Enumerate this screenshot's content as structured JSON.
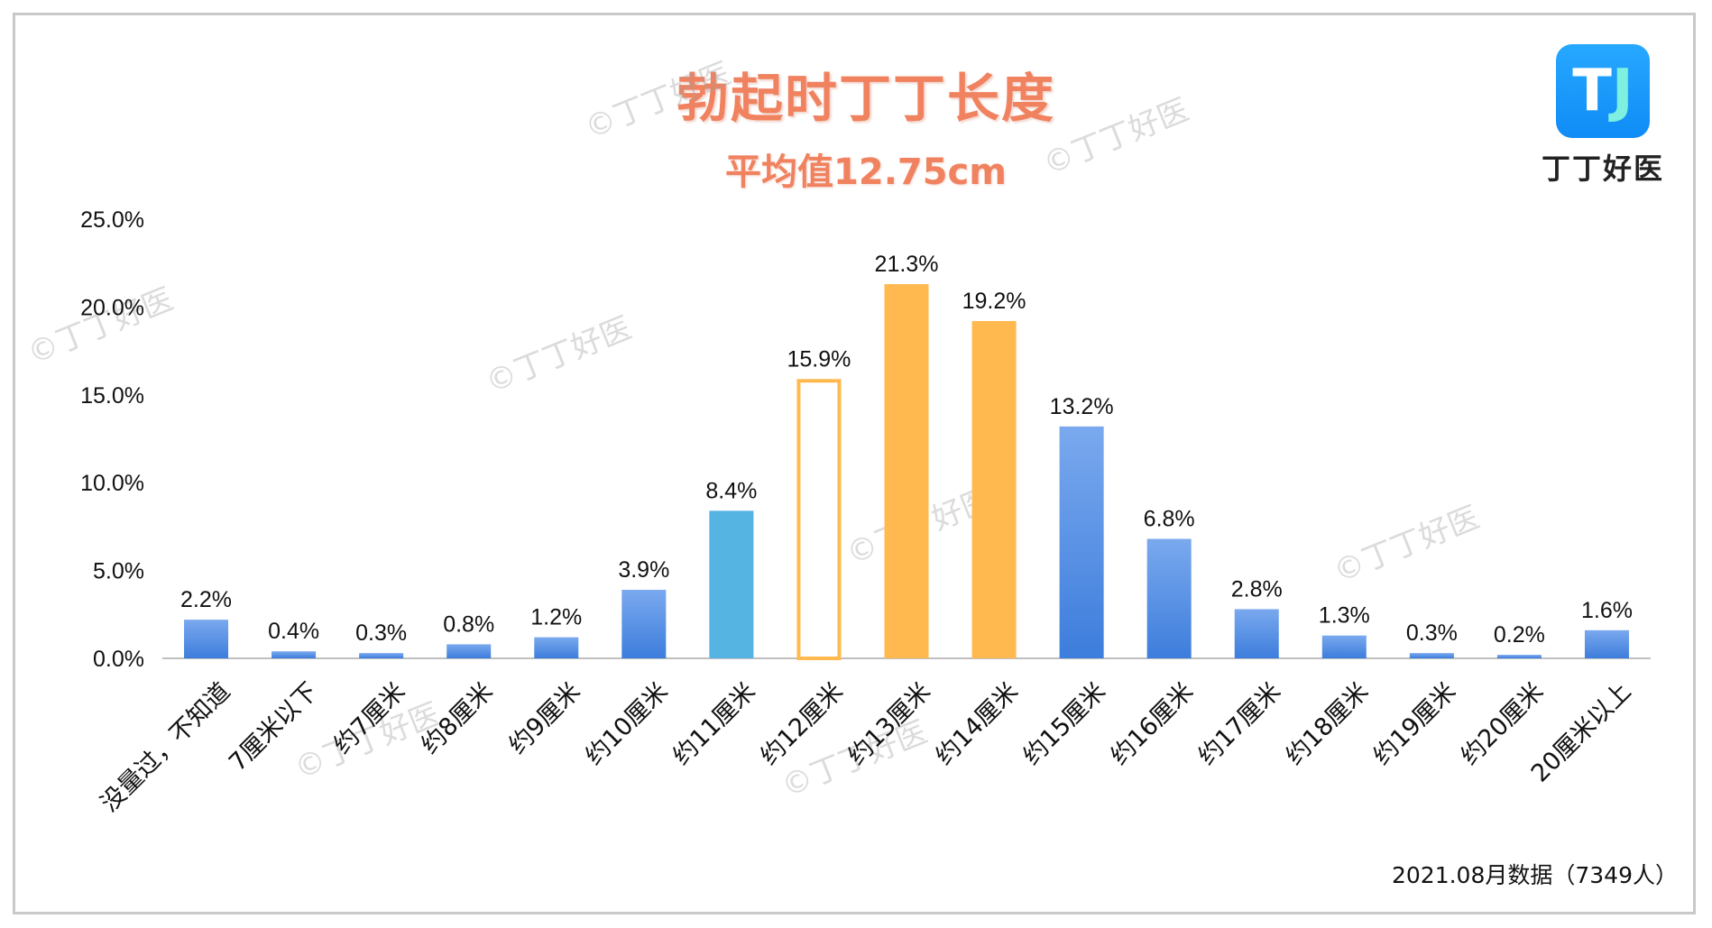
{
  "title": "勃起时丁丁长度",
  "subtitle": "平均值12.75cm",
  "logo": {
    "glyph_main": "T",
    "glyph_accent": "J",
    "text": "丁丁好医"
  },
  "watermark_text": "©丁丁好医",
  "footnote": "2021.08月数据（7349人）",
  "colors": {
    "title": "#f0825f",
    "blue": "#4f8fe6",
    "light_blue": "#56b4e3",
    "orange": "#ffb94f",
    "axis": "#bfbfbf"
  },
  "chart_data": {
    "type": "bar",
    "title": "勃起时丁丁长度",
    "subtitle": "平均值12.75cm",
    "ylim": [
      0,
      25
    ],
    "yticks": [
      "0.0%",
      "5.0%",
      "10.0%",
      "15.0%",
      "20.0%",
      "25.0%"
    ],
    "ytick_values": [
      0,
      5,
      10,
      15,
      20,
      25
    ],
    "categories": [
      "没量过，不知道",
      "7厘米以下",
      "约7厘米",
      "约8厘米",
      "约9厘米",
      "约10厘米",
      "约11厘米",
      "约12厘米",
      "约13厘米",
      "约14厘米",
      "约15厘米",
      "约16厘米",
      "约17厘米",
      "约18厘米",
      "约19厘米",
      "约20厘米",
      "20厘米以上"
    ],
    "values": [
      2.2,
      0.4,
      0.3,
      0.8,
      1.2,
      3.9,
      8.4,
      15.9,
      21.3,
      19.2,
      13.2,
      6.8,
      2.8,
      1.3,
      0.3,
      0.2,
      1.6
    ],
    "labels": [
      "2.2%",
      "0.4%",
      "0.3%",
      "0.8%",
      "1.2%",
      "3.9%",
      "8.4%",
      "15.9%",
      "21.3%",
      "19.2%",
      "13.2%",
      "6.8%",
      "2.8%",
      "1.3%",
      "0.3%",
      "0.2%",
      "1.6%"
    ],
    "bar_styles": [
      "blue",
      "blue",
      "blue",
      "blue",
      "blue",
      "blue",
      "light_blue",
      "orange_outline",
      "orange",
      "orange",
      "blue",
      "blue",
      "blue",
      "blue",
      "blue",
      "blue",
      "blue"
    ],
    "grid": false,
    "legend": "none"
  }
}
